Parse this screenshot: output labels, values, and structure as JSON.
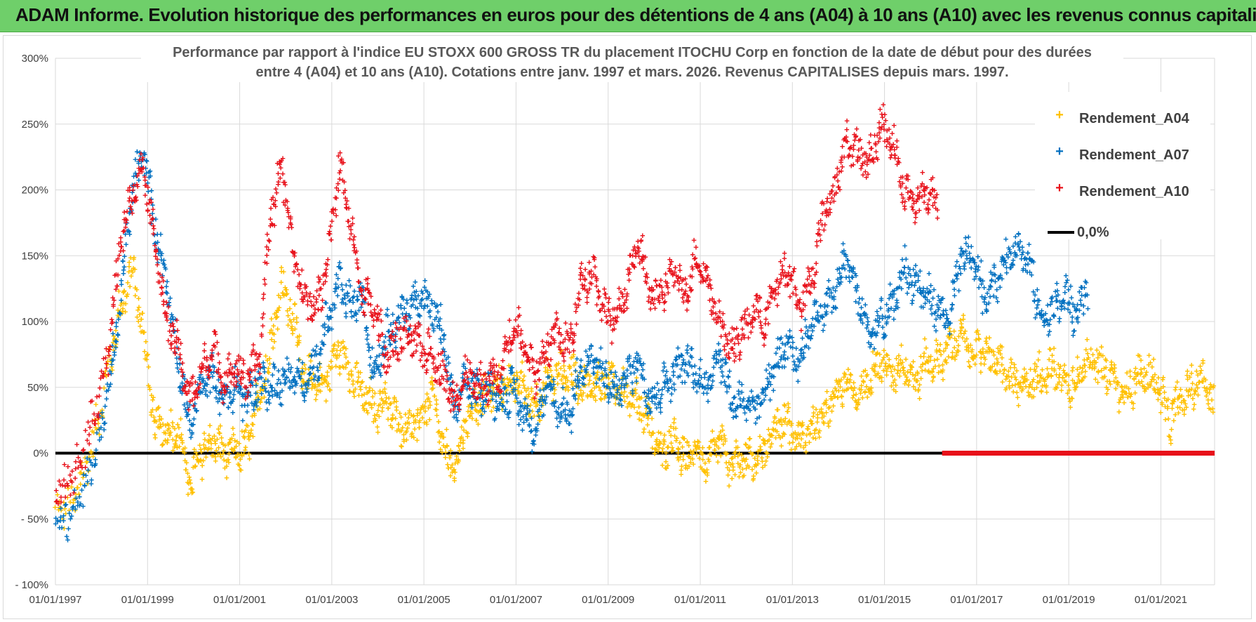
{
  "header": {
    "title": "ADAM Informe. Evolution historique des performances en euros pour des détentions de 4 ans (A04) à 10 ans (A10) avec les revenus connus capitalisés"
  },
  "colors": {
    "banner": "#6fcf6a",
    "A04": "#ffc000",
    "A07": "#0070c0",
    "A10": "#e8111a",
    "zero_line": "#000000",
    "grid": "#d9d9d9"
  },
  "chart_data": {
    "type": "scatter",
    "title_lines": [
      "Performance par rapport à l'indice EU STOXX 600 GROSS TR  du placement ITOCHU Corp en fonction de la date de début pour des durées",
      "entre 4 (A04) et 10 ans (A10).  Cotations entre janv. 1997 et mars. 2026.  Revenus CAPITALISES depuis mars. 1997."
    ],
    "x_axis": {
      "type": "date",
      "min": "1997-01-01",
      "max": "2022-03-01"
    },
    "y_axis": {
      "min": -100,
      "max": 300,
      "step": 50,
      "unit": "%"
    },
    "x_tick_labels": [
      "01/01/1997",
      "01/01/1999",
      "01/01/2001",
      "01/01/2003",
      "01/01/2005",
      "01/01/2007",
      "01/01/2009",
      "01/01/2011",
      "01/01/2013",
      "01/01/2015",
      "01/01/2017",
      "01/01/2019",
      "01/01/2021"
    ],
    "y_tick_labels": [
      "300%",
      "250%",
      "200%",
      "150%",
      "100%",
      "50%",
      "0%",
      "- 50%",
      "- 100%"
    ],
    "grid": true,
    "legend_position": "top-right",
    "series": [
      {
        "name": "Rendement_A04",
        "marker": "+",
        "color": "#ffc000",
        "points": [
          [
            "1997-01",
            -45
          ],
          [
            "1997-06",
            -35
          ],
          [
            "1997-11",
            10
          ],
          [
            "1998-03",
            70
          ],
          [
            "1998-06",
            110
          ],
          [
            "1998-09",
            140
          ],
          [
            "1998-12",
            90
          ],
          [
            "1999-03",
            20
          ],
          [
            "1999-06",
            15
          ],
          [
            "1999-09",
            20
          ],
          [
            "1999-12",
            -25
          ],
          [
            "2000-03",
            0
          ],
          [
            "2000-06",
            10
          ],
          [
            "2000-09",
            0
          ],
          [
            "2000-12",
            0
          ],
          [
            "2001-03",
            5
          ],
          [
            "2001-06",
            40
          ],
          [
            "2001-09",
            80
          ],
          [
            "2001-12",
            130
          ],
          [
            "2002-03",
            100
          ],
          [
            "2002-06",
            60
          ],
          [
            "2002-09",
            50
          ],
          [
            "2002-12",
            60
          ],
          [
            "2003-03",
            80
          ],
          [
            "2003-06",
            60
          ],
          [
            "2003-09",
            45
          ],
          [
            "2003-12",
            35
          ],
          [
            "2004-03",
            40
          ],
          [
            "2004-06",
            25
          ],
          [
            "2004-09",
            20
          ],
          [
            "2004-12",
            25
          ],
          [
            "2005-03",
            45
          ],
          [
            "2005-06",
            5
          ],
          [
            "2005-09",
            -15
          ],
          [
            "2005-12",
            25
          ],
          [
            "2006-03",
            40
          ],
          [
            "2006-06",
            45
          ],
          [
            "2006-09",
            50
          ],
          [
            "2006-12",
            55
          ],
          [
            "2007-03",
            50
          ],
          [
            "2007-06",
            35
          ],
          [
            "2007-09",
            55
          ],
          [
            "2007-12",
            60
          ],
          [
            "2008-03",
            60
          ],
          [
            "2008-06",
            55
          ],
          [
            "2008-09",
            50
          ],
          [
            "2008-12",
            55
          ],
          [
            "2009-03",
            55
          ],
          [
            "2009-06",
            45
          ],
          [
            "2009-09",
            40
          ],
          [
            "2009-12",
            20
          ],
          [
            "2010-03",
            0
          ],
          [
            "2010-06",
            10
          ],
          [
            "2010-09",
            -5
          ],
          [
            "2010-12",
            5
          ],
          [
            "2011-03",
            -10
          ],
          [
            "2011-06",
            10
          ],
          [
            "2011-09",
            -10
          ],
          [
            "2011-12",
            -5
          ],
          [
            "2012-03",
            -5
          ],
          [
            "2012-06",
            0
          ],
          [
            "2012-09",
            25
          ],
          [
            "2012-12",
            20
          ],
          [
            "2013-03",
            10
          ],
          [
            "2013-06",
            20
          ],
          [
            "2013-09",
            30
          ],
          [
            "2013-12",
            45
          ],
          [
            "2014-03",
            55
          ],
          [
            "2014-06",
            40
          ],
          [
            "2014-09",
            60
          ],
          [
            "2014-12",
            70
          ],
          [
            "2015-03",
            60
          ],
          [
            "2015-06",
            70
          ],
          [
            "2015-09",
            55
          ],
          [
            "2015-12",
            70
          ],
          [
            "2016-03",
            70
          ],
          [
            "2016-06",
            80
          ],
          [
            "2016-09",
            90
          ],
          [
            "2016-12",
            75
          ],
          [
            "2017-03",
            80
          ],
          [
            "2017-06",
            70
          ],
          [
            "2017-09",
            60
          ],
          [
            "2017-12",
            50
          ],
          [
            "2018-03",
            55
          ],
          [
            "2018-06",
            60
          ],
          [
            "2018-09",
            65
          ],
          [
            "2018-12",
            55
          ],
          [
            "2019-03",
            55
          ],
          [
            "2019-06",
            75
          ],
          [
            "2019-09",
            65
          ],
          [
            "2019-12",
            60
          ],
          [
            "2020-03",
            45
          ],
          [
            "2020-06",
            55
          ],
          [
            "2020-09",
            60
          ],
          [
            "2020-12",
            55
          ],
          [
            "2021-03",
            25
          ],
          [
            "2021-06",
            40
          ],
          [
            "2021-09",
            50
          ],
          [
            "2021-12",
            60
          ],
          [
            "2022-03",
            35
          ]
        ]
      },
      {
        "name": "Rendement_A07",
        "marker": "+",
        "color": "#0070c0",
        "points": [
          [
            "1997-01",
            -55
          ],
          [
            "1997-06",
            -40
          ],
          [
            "1997-11",
            -5
          ],
          [
            "1998-03",
            50
          ],
          [
            "1998-06",
            120
          ],
          [
            "1998-09",
            200
          ],
          [
            "1998-12",
            230
          ],
          [
            "1999-03",
            170
          ],
          [
            "1999-06",
            130
          ],
          [
            "1999-09",
            70
          ],
          [
            "1999-12",
            20
          ],
          [
            "2000-03",
            50
          ],
          [
            "2000-06",
            60
          ],
          [
            "2000-09",
            40
          ],
          [
            "2000-12",
            50
          ],
          [
            "2001-03",
            40
          ],
          [
            "2001-06",
            55
          ],
          [
            "2001-09",
            50
          ],
          [
            "2001-12",
            55
          ],
          [
            "2002-03",
            60
          ],
          [
            "2002-06",
            50
          ],
          [
            "2002-09",
            70
          ],
          [
            "2002-12",
            100
          ],
          [
            "2003-03",
            130
          ],
          [
            "2003-06",
            110
          ],
          [
            "2003-09",
            120
          ],
          [
            "2003-12",
            60
          ],
          [
            "2004-03",
            90
          ],
          [
            "2004-06",
            100
          ],
          [
            "2004-09",
            110
          ],
          [
            "2004-12",
            120
          ],
          [
            "2005-03",
            110
          ],
          [
            "2005-06",
            90
          ],
          [
            "2005-09",
            30
          ],
          [
            "2005-12",
            55
          ],
          [
            "2006-03",
            45
          ],
          [
            "2006-06",
            50
          ],
          [
            "2006-09",
            40
          ],
          [
            "2006-12",
            50
          ],
          [
            "2007-03",
            30
          ],
          [
            "2007-06",
            20
          ],
          [
            "2007-09",
            50
          ],
          [
            "2007-12",
            35
          ],
          [
            "2008-03",
            30
          ],
          [
            "2008-06",
            65
          ],
          [
            "2008-09",
            70
          ],
          [
            "2008-12",
            60
          ],
          [
            "2009-03",
            45
          ],
          [
            "2009-06",
            60
          ],
          [
            "2009-09",
            70
          ],
          [
            "2009-12",
            40
          ],
          [
            "2010-03",
            50
          ],
          [
            "2010-06",
            60
          ],
          [
            "2010-09",
            70
          ],
          [
            "2010-12",
            60
          ],
          [
            "2011-03",
            50
          ],
          [
            "2011-06",
            80
          ],
          [
            "2011-09",
            40
          ],
          [
            "2011-12",
            40
          ],
          [
            "2012-03",
            30
          ],
          [
            "2012-06",
            50
          ],
          [
            "2012-09",
            70
          ],
          [
            "2012-12",
            80
          ],
          [
            "2013-03",
            70
          ],
          [
            "2013-06",
            100
          ],
          [
            "2013-09",
            110
          ],
          [
            "2013-12",
            120
          ],
          [
            "2014-03",
            150
          ],
          [
            "2014-06",
            120
          ],
          [
            "2014-09",
            90
          ],
          [
            "2014-12",
            100
          ],
          [
            "2015-03",
            110
          ],
          [
            "2015-06",
            140
          ],
          [
            "2015-09",
            130
          ],
          [
            "2015-12",
            120
          ],
          [
            "2016-03",
            110
          ],
          [
            "2016-06",
            100
          ],
          [
            "2016-09",
            150
          ],
          [
            "2016-12",
            150
          ],
          [
            "2017-03",
            120
          ],
          [
            "2017-06",
            130
          ],
          [
            "2017-09",
            150
          ],
          [
            "2017-12",
            160
          ],
          [
            "2018-03",
            140
          ],
          [
            "2018-06",
            100
          ],
          [
            "2018-09",
            110
          ],
          [
            "2018-12",
            120
          ],
          [
            "2019-03",
            105
          ],
          [
            "2019-06",
            130
          ]
        ]
      },
      {
        "name": "Rendement_A10",
        "marker": "+",
        "color": "#e8111a",
        "points": [
          [
            "1997-01",
            -30
          ],
          [
            "1997-06",
            -20
          ],
          [
            "1997-11",
            30
          ],
          [
            "1998-03",
            80
          ],
          [
            "1998-06",
            160
          ],
          [
            "1998-09",
            200
          ],
          [
            "1998-12",
            220
          ],
          [
            "1999-03",
            160
          ],
          [
            "1999-06",
            100
          ],
          [
            "1999-09",
            80
          ],
          [
            "1999-12",
            40
          ],
          [
            "2000-03",
            60
          ],
          [
            "2000-06",
            80
          ],
          [
            "2000-09",
            55
          ],
          [
            "2000-12",
            65
          ],
          [
            "2001-03",
            55
          ],
          [
            "2001-06",
            70
          ],
          [
            "2001-09",
            180
          ],
          [
            "2001-12",
            220
          ],
          [
            "2002-03",
            150
          ],
          [
            "2002-06",
            120
          ],
          [
            "2002-09",
            110
          ],
          [
            "2002-12",
            150
          ],
          [
            "2003-03",
            220
          ],
          [
            "2003-06",
            170
          ],
          [
            "2003-09",
            120
          ],
          [
            "2003-12",
            110
          ],
          [
            "2004-03",
            75
          ],
          [
            "2004-06",
            85
          ],
          [
            "2004-09",
            90
          ],
          [
            "2004-12",
            80
          ],
          [
            "2005-03",
            75
          ],
          [
            "2005-06",
            60
          ],
          [
            "2005-09",
            40
          ],
          [
            "2005-12",
            60
          ],
          [
            "2006-03",
            50
          ],
          [
            "2006-06",
            55
          ],
          [
            "2006-09",
            60
          ],
          [
            "2006-12",
            100
          ],
          [
            "2007-03",
            85
          ],
          [
            "2007-06",
            60
          ],
          [
            "2007-09",
            80
          ],
          [
            "2007-12",
            90
          ],
          [
            "2008-03",
            80
          ],
          [
            "2008-06",
            130
          ],
          [
            "2008-09",
            140
          ],
          [
            "2008-12",
            110
          ],
          [
            "2009-03",
            100
          ],
          [
            "2009-06",
            130
          ],
          [
            "2009-09",
            160
          ],
          [
            "2009-12",
            120
          ],
          [
            "2010-03",
            120
          ],
          [
            "2010-06",
            140
          ],
          [
            "2010-09",
            120
          ],
          [
            "2010-12",
            150
          ],
          [
            "2011-03",
            130
          ],
          [
            "2011-06",
            100
          ],
          [
            "2011-09",
            80
          ],
          [
            "2011-12",
            90
          ],
          [
            "2012-03",
            110
          ],
          [
            "2012-06",
            100
          ],
          [
            "2012-09",
            130
          ],
          [
            "2012-12",
            140
          ],
          [
            "2013-03",
            110
          ],
          [
            "2013-06",
            130
          ],
          [
            "2013-09",
            180
          ],
          [
            "2013-12",
            200
          ],
          [
            "2014-03",
            240
          ],
          [
            "2014-06",
            230
          ],
          [
            "2014-09",
            220
          ],
          [
            "2014-12",
            250
          ],
          [
            "2015-03",
            240
          ],
          [
            "2015-06",
            200
          ],
          [
            "2015-09",
            190
          ],
          [
            "2015-12",
            200
          ],
          [
            "2016-03",
            190
          ]
        ]
      }
    ],
    "reference_line": {
      "name": "0,0%",
      "value": 0,
      "color": "#000000"
    },
    "zero_marker_band": {
      "color": "#e8111a",
      "from": "2016-04",
      "to": "2022-03",
      "value": 0
    }
  }
}
